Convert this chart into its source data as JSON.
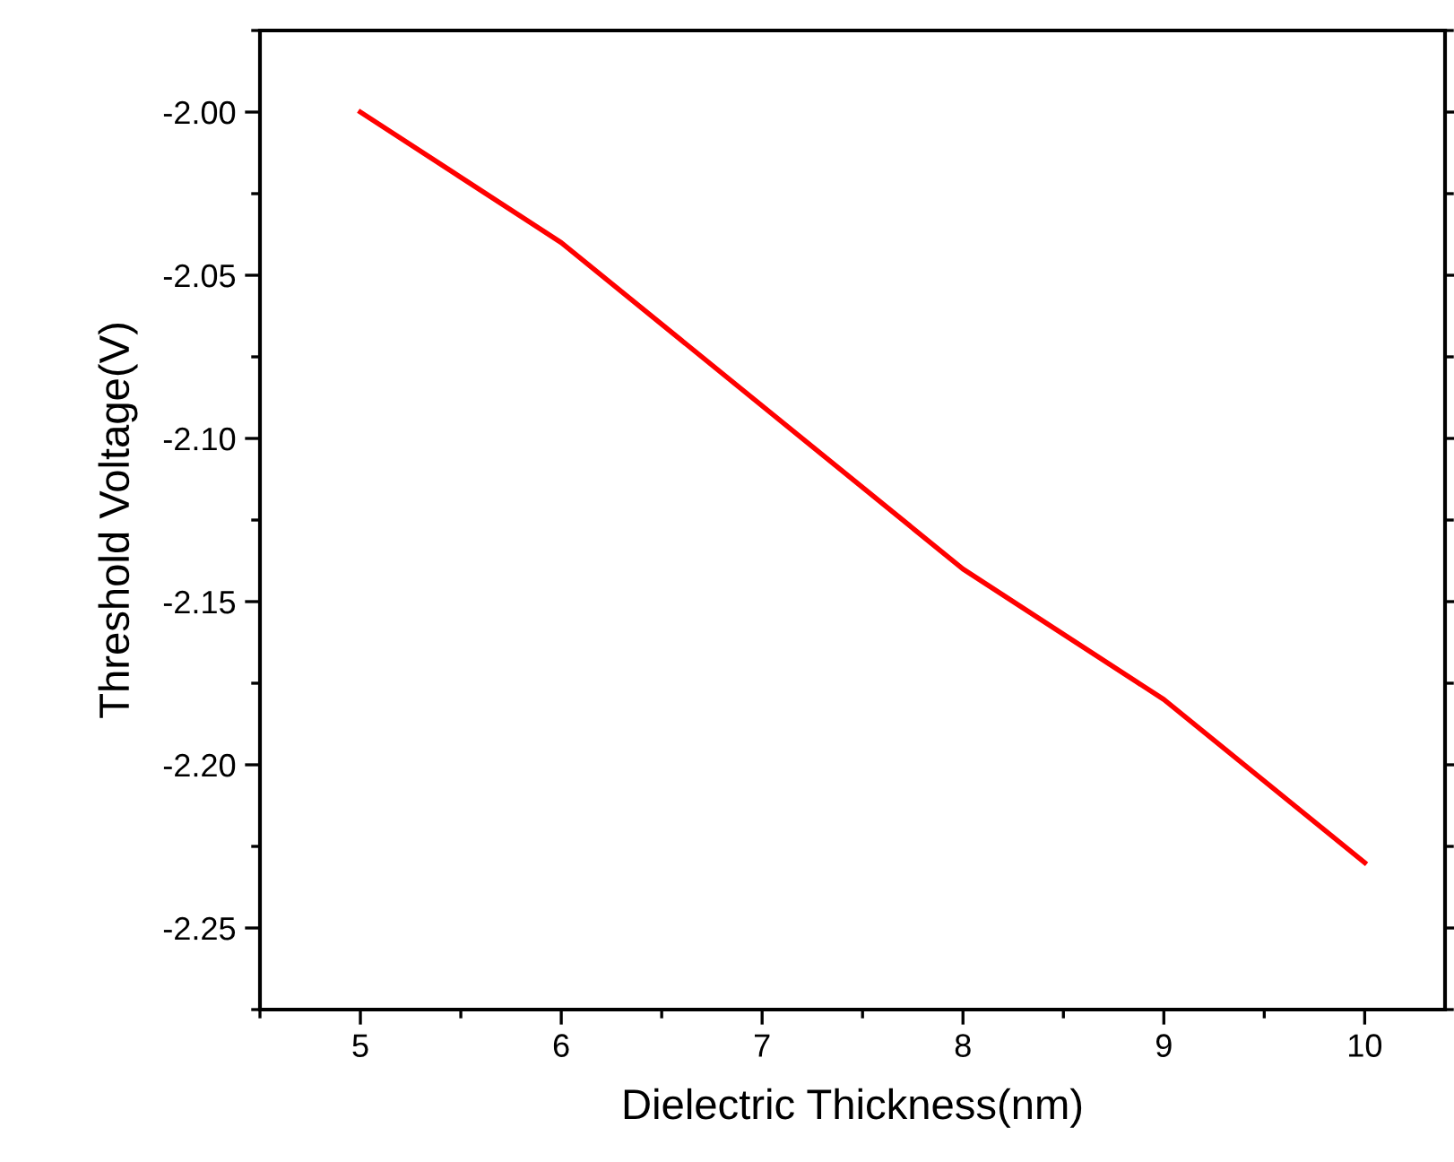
{
  "chart_data": {
    "type": "line",
    "xlabel": "Dielectric Thickness(nm)",
    "ylabel": "Threshold Voltage(V)",
    "x": [
      5,
      6,
      7,
      8,
      9,
      10
    ],
    "series": [
      {
        "color": "#ff0000",
        "values": [
          -2.0,
          -2.04,
          -2.09,
          -2.14,
          -2.18,
          -2.23
        ]
      }
    ],
    "xlim": [
      4.5,
      10.4
    ],
    "xticks": [
      5,
      6,
      7,
      8,
      9,
      10
    ],
    "ylim": [
      -2.275,
      -1.975
    ],
    "yticks": [
      {
        "value": -2.0,
        "label": "-2.00"
      },
      {
        "value": -2.05,
        "label": "-2.05"
      },
      {
        "value": -2.1,
        "label": "-2.10"
      },
      {
        "value": -2.15,
        "label": "-2.15"
      },
      {
        "value": -2.2,
        "label": "-2.20"
      },
      {
        "value": -2.25,
        "label": "-2.25"
      }
    ],
    "grid": false,
    "marker": "none",
    "line_style": "solid"
  }
}
